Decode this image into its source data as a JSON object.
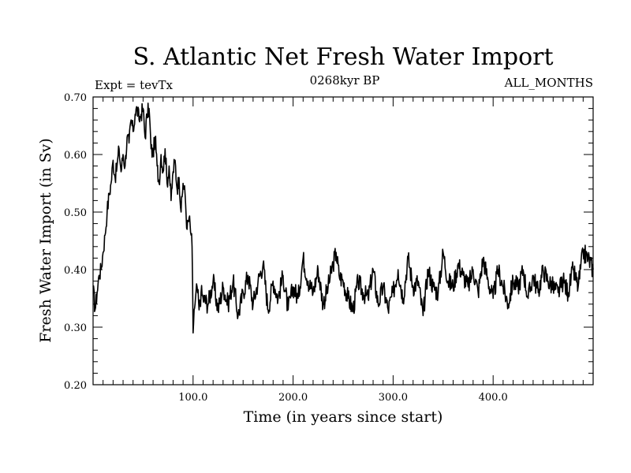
{
  "chart_data": {
    "type": "line",
    "title": "S. Atlantic Net Fresh Water Import",
    "subtitle_left": "Expt = tevTx",
    "subtitle_center": "0268kyr BP",
    "subtitle_right": "ALL_MONTHS",
    "xlabel": "Time (in years since start)",
    "ylabel": "Fresh Water Import (in Sv)",
    "xlim": [
      0,
      500
    ],
    "ylim": [
      0.2,
      0.7
    ],
    "xticks": [
      100,
      200,
      300,
      400
    ],
    "xtick_labels": [
      "100.0",
      "200.0",
      "300.0",
      "400.0"
    ],
    "yticks": [
      0.2,
      0.3,
      0.4,
      0.5,
      0.6,
      0.7
    ],
    "ytick_labels": [
      "0.20",
      "0.30",
      "0.40",
      "0.50",
      "0.60",
      "0.70"
    ],
    "grid": false,
    "legend": "none",
    "line_color": "#000000",
    "series": [
      {
        "x": [
          0,
          2,
          4,
          6,
          8,
          10,
          12,
          14,
          16,
          18,
          20,
          22,
          24,
          26,
          28,
          30,
          32,
          34,
          36,
          38,
          40,
          42,
          44,
          46,
          48,
          50,
          52,
          54,
          56,
          58,
          60,
          62,
          64,
          66,
          68,
          70,
          72,
          74,
          76,
          78,
          80,
          82,
          84,
          86,
          88,
          90,
          92,
          94,
          96,
          98,
          99,
          100,
          101,
          102,
          104,
          106,
          108,
          110,
          115,
          120,
          125,
          130,
          135,
          140,
          145,
          150,
          155,
          160,
          165,
          170,
          175,
          180,
          185,
          190,
          195,
          200,
          205,
          210,
          215,
          220,
          225,
          230,
          235,
          240,
          243,
          246,
          250,
          255,
          260,
          265,
          270,
          275,
          280,
          285,
          290,
          295,
          300,
          305,
          310,
          315,
          320,
          325,
          330,
          335,
          340,
          345,
          350,
          355,
          360,
          365,
          370,
          375,
          380,
          385,
          390,
          395,
          400,
          405,
          410,
          415,
          420,
          425,
          430,
          435,
          440,
          445,
          450,
          455,
          460,
          465,
          470,
          475,
          480,
          485,
          490,
          495,
          500
        ],
        "values": [
          0.37,
          0.33,
          0.36,
          0.39,
          0.4,
          0.43,
          0.46,
          0.5,
          0.53,
          0.55,
          0.59,
          0.56,
          0.58,
          0.61,
          0.57,
          0.6,
          0.58,
          0.63,
          0.62,
          0.66,
          0.64,
          0.67,
          0.68,
          0.66,
          0.67,
          0.68,
          0.63,
          0.67,
          0.68,
          0.61,
          0.6,
          0.63,
          0.58,
          0.55,
          0.6,
          0.57,
          0.61,
          0.55,
          0.58,
          0.52,
          0.57,
          0.59,
          0.54,
          0.56,
          0.5,
          0.55,
          0.53,
          0.47,
          0.49,
          0.46,
          0.44,
          0.29,
          0.33,
          0.34,
          0.37,
          0.33,
          0.36,
          0.35,
          0.34,
          0.38,
          0.33,
          0.37,
          0.34,
          0.38,
          0.32,
          0.36,
          0.39,
          0.34,
          0.38,
          0.41,
          0.33,
          0.38,
          0.35,
          0.39,
          0.33,
          0.37,
          0.35,
          0.42,
          0.38,
          0.36,
          0.4,
          0.34,
          0.37,
          0.41,
          0.43,
          0.39,
          0.38,
          0.35,
          0.33,
          0.38,
          0.36,
          0.35,
          0.4,
          0.34,
          0.37,
          0.33,
          0.36,
          0.4,
          0.35,
          0.42,
          0.37,
          0.38,
          0.32,
          0.4,
          0.37,
          0.36,
          0.43,
          0.38,
          0.37,
          0.41,
          0.39,
          0.37,
          0.4,
          0.36,
          0.42,
          0.38,
          0.35,
          0.4,
          0.37,
          0.34,
          0.38,
          0.37,
          0.4,
          0.35,
          0.39,
          0.36,
          0.4,
          0.38,
          0.37,
          0.36,
          0.38,
          0.36,
          0.4,
          0.37,
          0.43,
          0.42,
          0.4
        ]
      }
    ]
  }
}
